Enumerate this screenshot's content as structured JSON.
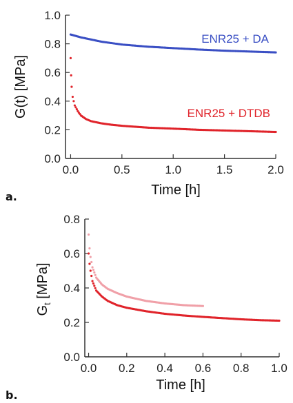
{
  "chart_data": [
    {
      "type": "scatter",
      "panel_label": "a.",
      "xlabel": "Time [h]",
      "ylabel": "G(t) [MPa]",
      "xlim": [
        -0.05,
        2.0
      ],
      "ylim": [
        0.0,
        1.0
      ],
      "xticks": [
        "0.0",
        "0.5",
        "1.0",
        "1.5",
        "2.0"
      ],
      "yticks": [
        "0.0",
        "0.2",
        "0.4",
        "0.6",
        "0.8",
        "1.0"
      ],
      "grid": false,
      "series": [
        {
          "name": "ENR25 + DA",
          "color": "#3a4fc4",
          "x": [
            0.0,
            0.05,
            0.1,
            0.2,
            0.3,
            0.5,
            0.75,
            1.0,
            1.25,
            1.5,
            1.75,
            2.0
          ],
          "y": [
            0.865,
            0.855,
            0.845,
            0.83,
            0.815,
            0.795,
            0.78,
            0.77,
            0.76,
            0.752,
            0.746,
            0.74
          ]
        },
        {
          "name": "ENR25 + DTDB",
          "color": "#e0242b",
          "x": [
            0.0,
            0.005,
            0.01,
            0.02,
            0.04,
            0.07,
            0.1,
            0.15,
            0.2,
            0.3,
            0.4,
            0.5,
            0.75,
            1.0,
            1.25,
            1.5,
            1.75,
            2.0
          ],
          "y": [
            0.7,
            0.58,
            0.5,
            0.43,
            0.37,
            0.33,
            0.3,
            0.275,
            0.26,
            0.245,
            0.235,
            0.228,
            0.215,
            0.208,
            0.2,
            0.195,
            0.19,
            0.185
          ]
        }
      ]
    },
    {
      "type": "scatter",
      "panel_label": "b.",
      "xlabel": "Time [h]",
      "ylabel": "G",
      "ylabel_sub": "t",
      "ylabel_suffix": " [MPa]",
      "xlim": [
        -0.02,
        1.0
      ],
      "ylim": [
        0.0,
        0.8
      ],
      "xticks": [
        "0.0",
        "0.2",
        "0.4",
        "0.6",
        "0.8",
        "1.0"
      ],
      "yticks": [
        "0.0",
        "0.2",
        "0.4",
        "0.6",
        "0.8"
      ],
      "grid": false,
      "series": [
        {
          "color": "#f0a0a8",
          "x": [
            0.0,
            0.005,
            0.01,
            0.02,
            0.04,
            0.07,
            0.1,
            0.15,
            0.2,
            0.3,
            0.4,
            0.5,
            0.6
          ],
          "y": [
            0.71,
            0.63,
            0.58,
            0.52,
            0.46,
            0.42,
            0.395,
            0.37,
            0.35,
            0.325,
            0.31,
            0.3,
            0.295
          ]
        },
        {
          "color": "#e0242b",
          "x": [
            0.0,
            0.005,
            0.01,
            0.02,
            0.04,
            0.07,
            0.1,
            0.15,
            0.2,
            0.3,
            0.4,
            0.5,
            0.6,
            0.7,
            0.8,
            0.9,
            1.0
          ],
          "y": [
            0.6,
            0.54,
            0.5,
            0.44,
            0.385,
            0.35,
            0.325,
            0.3,
            0.285,
            0.265,
            0.25,
            0.24,
            0.232,
            0.225,
            0.218,
            0.213,
            0.21
          ]
        }
      ]
    }
  ]
}
